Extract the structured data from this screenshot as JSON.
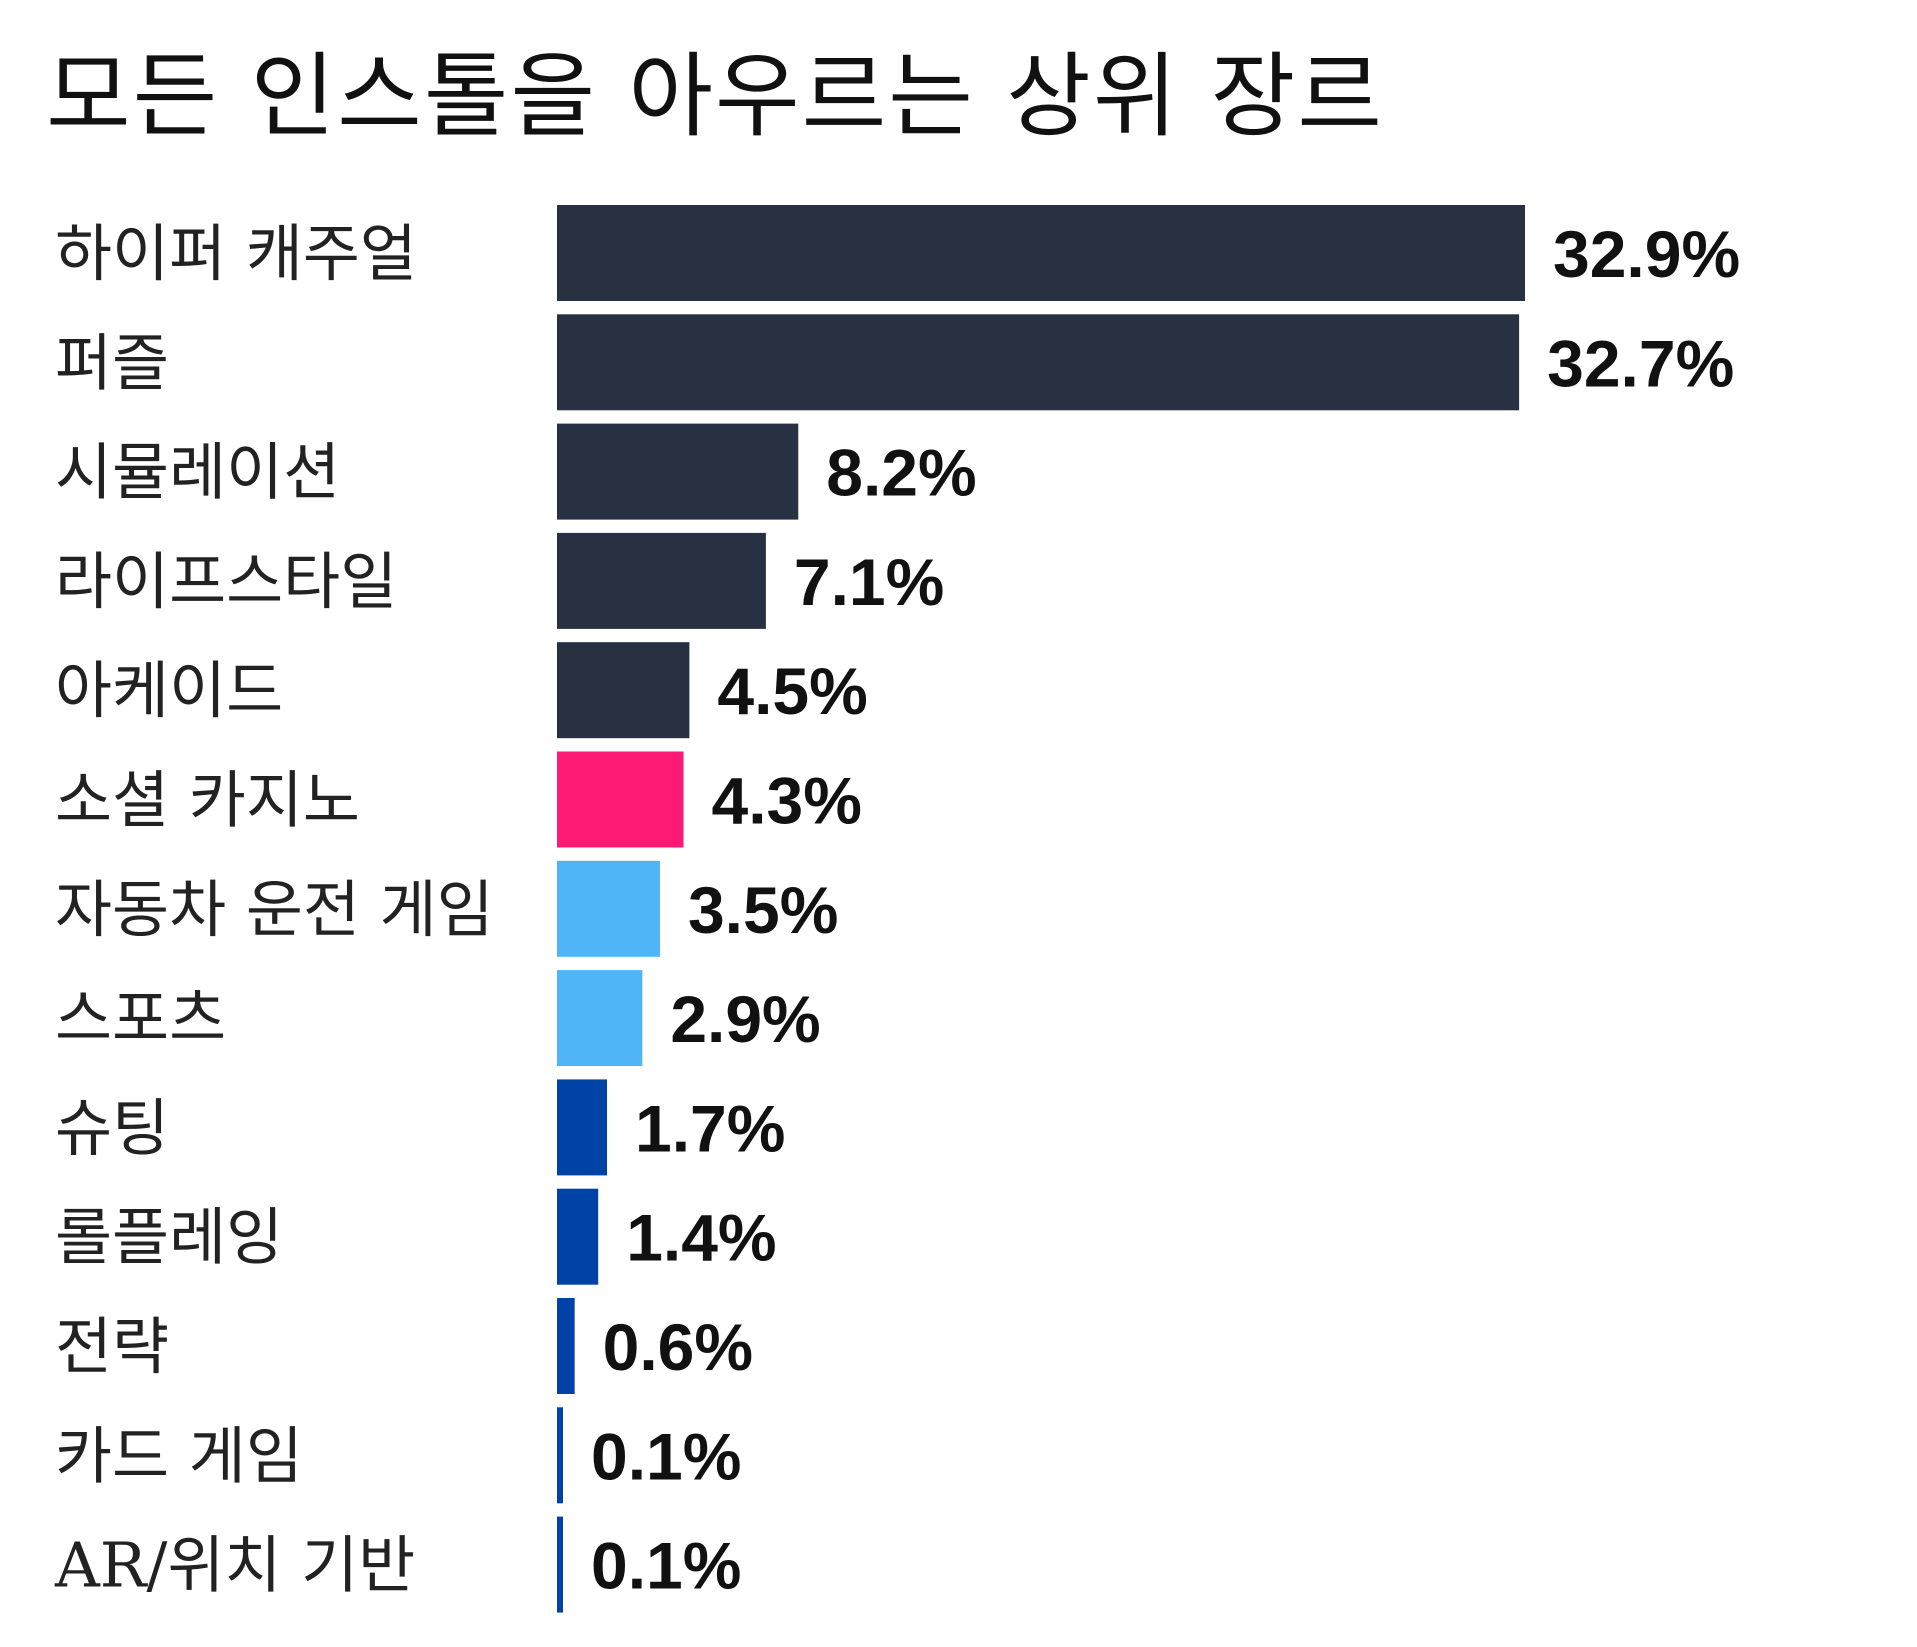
{
  "chart_data": {
    "type": "bar",
    "orientation": "horizontal",
    "title": "모든 인스톨을 아우르는 상위 장르",
    "xlabel": "",
    "ylabel": "",
    "grid": false,
    "legend": "none",
    "xlim": [
      0,
      32.9
    ],
    "unit": "%",
    "categories": [
      "하이퍼 캐주얼",
      "퍼즐",
      "시뮬레이션",
      "라이프스타일",
      "아케이드",
      "소셜 카지노",
      "자동차 운전 게임",
      "스포츠",
      "슈팅",
      "롤플레잉",
      "전략",
      "카드 게임",
      "AR/위치 기반"
    ],
    "values": [
      32.9,
      32.7,
      8.2,
      7.1,
      4.5,
      4.3,
      3.5,
      2.9,
      1.7,
      1.4,
      0.6,
      0.1,
      0.1
    ],
    "value_labels": [
      "32.9%",
      "32.7%",
      "8.2%",
      "7.1%",
      "4.5%",
      "4.3%",
      "3.5%",
      "2.9%",
      "1.7%",
      "1.4%",
      "0.6%",
      "0.1%",
      "0.1%"
    ],
    "bar_colors": [
      "#283142",
      "#283142",
      "#283142",
      "#283142",
      "#283142",
      "#fc1a74",
      "#4fb5f6",
      "#4fb5f6",
      "#0042a6",
      "#0042a6",
      "#0042a6",
      "#0042a6",
      "#0042a6"
    ]
  }
}
